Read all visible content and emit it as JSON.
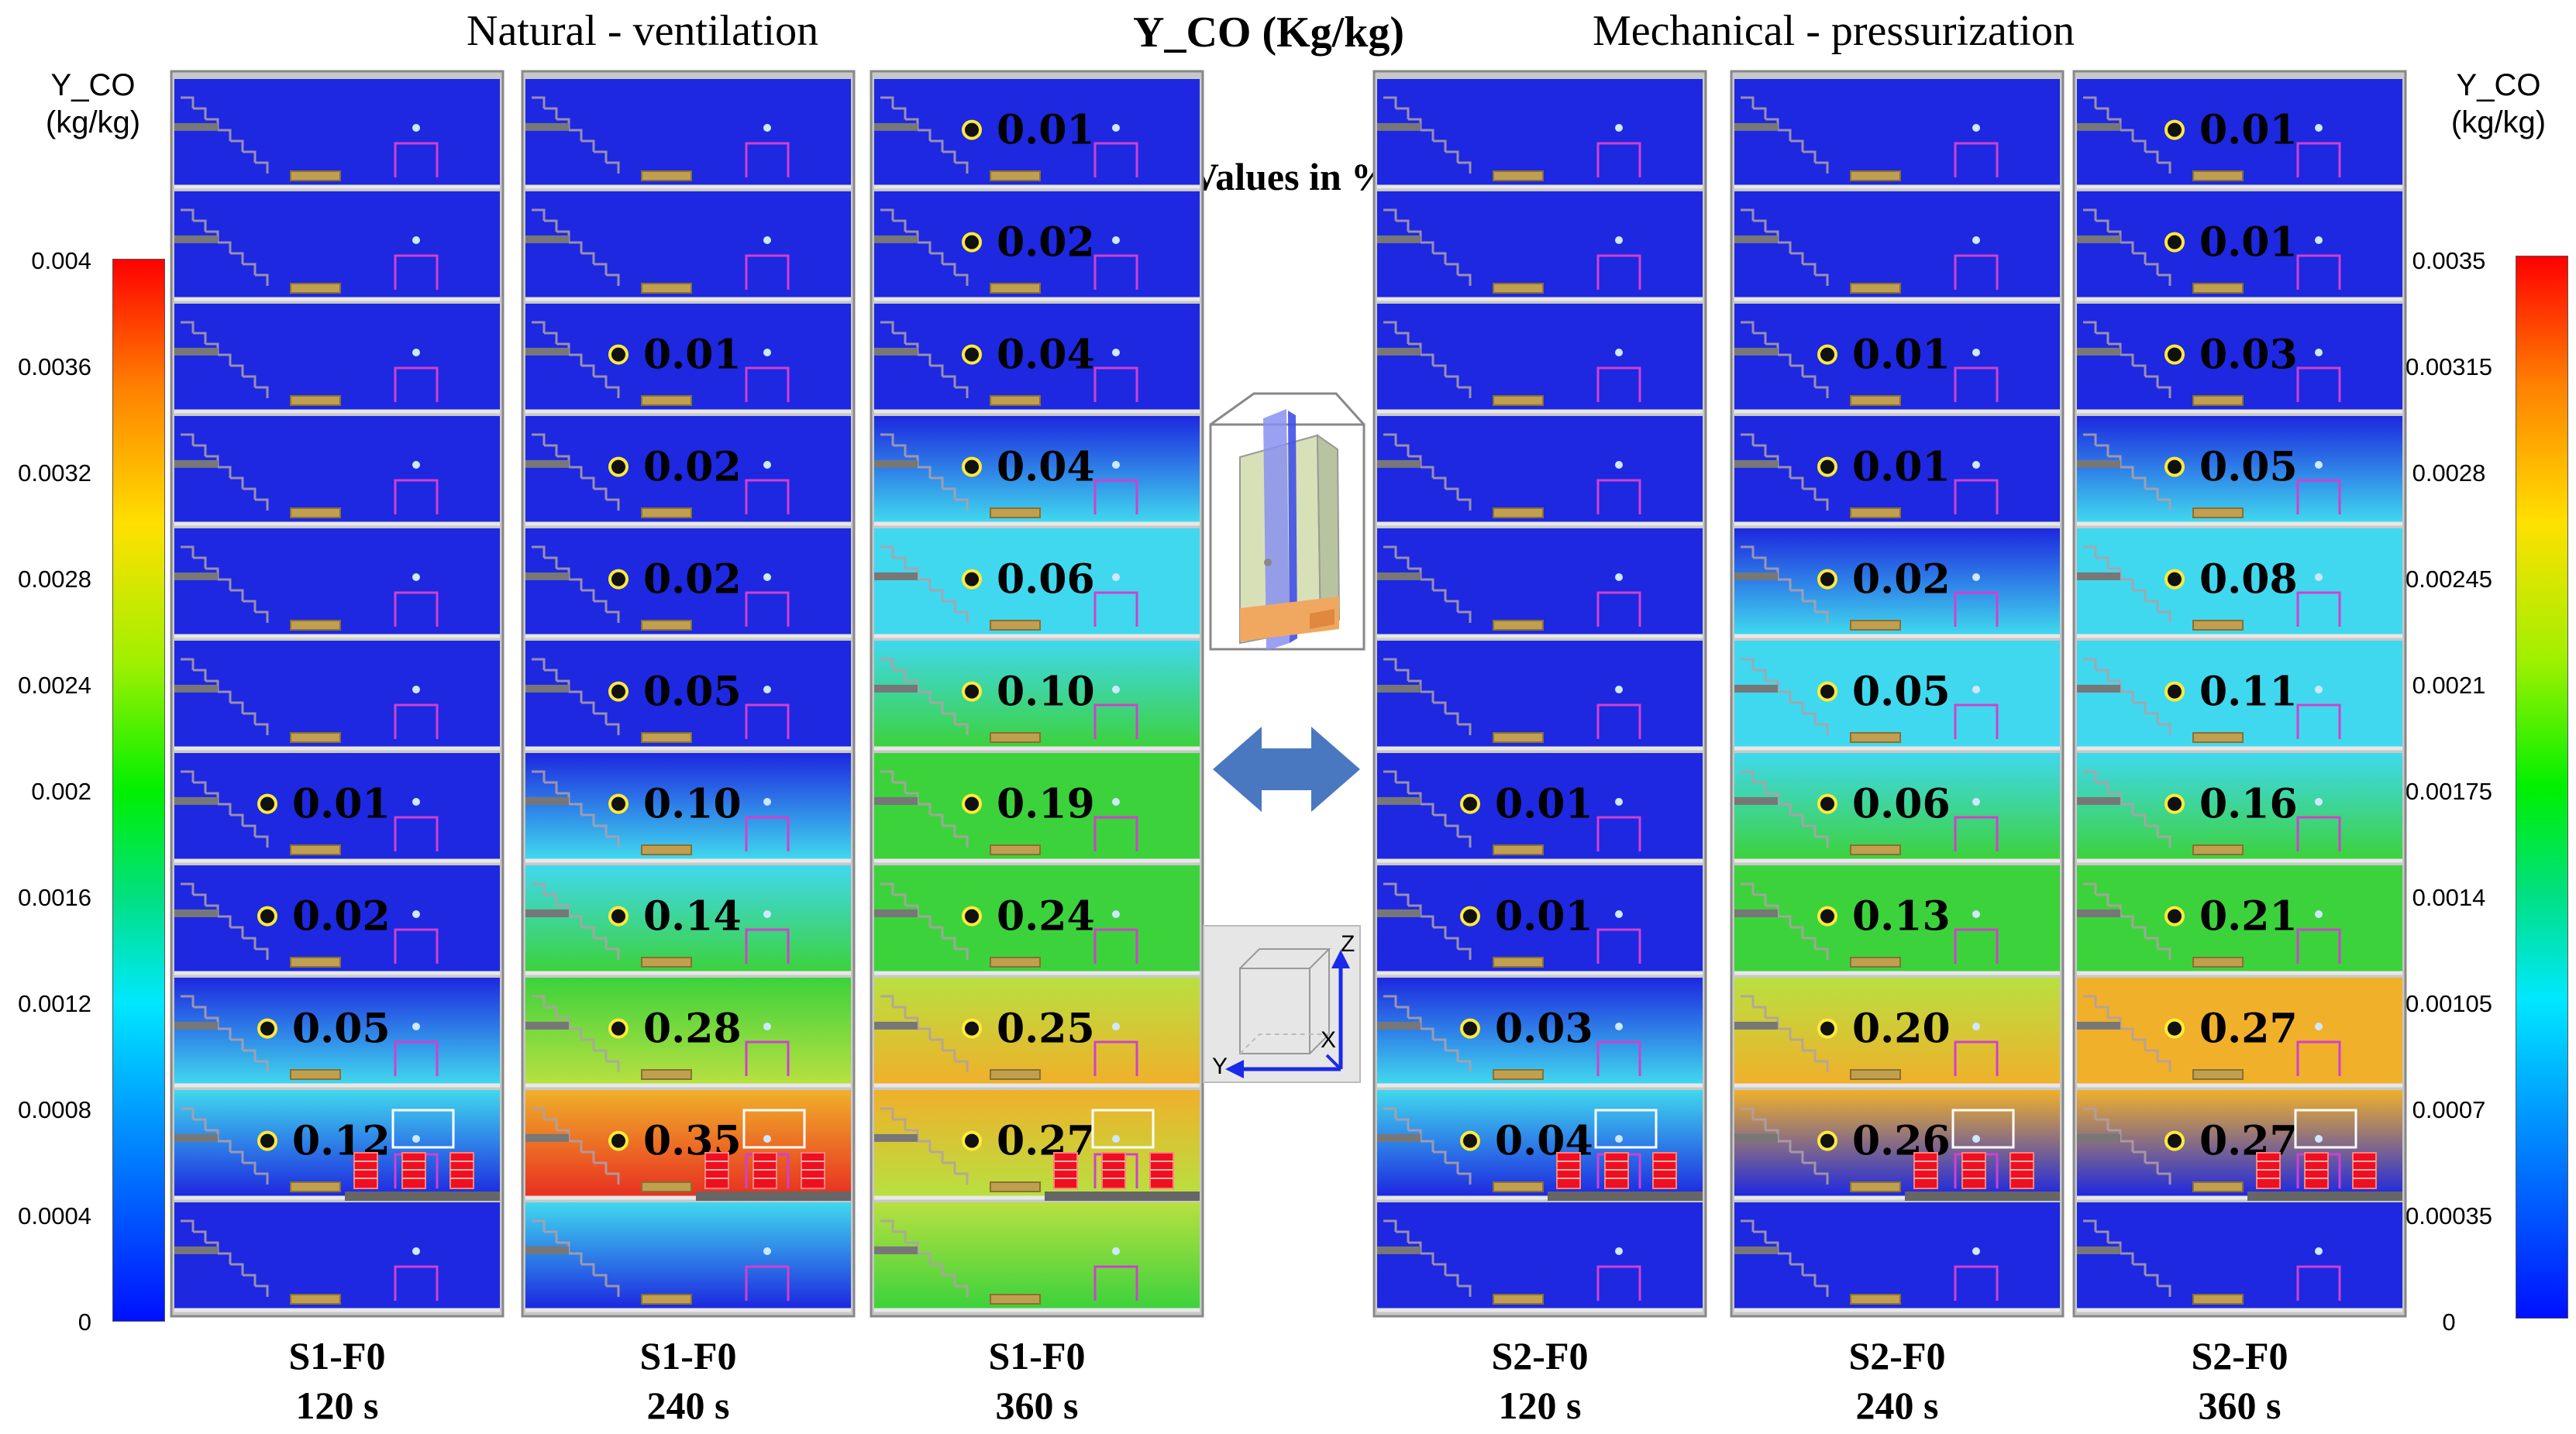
{
  "headers": {
    "left_title": "Natural - ventilation",
    "center_title": "Y_CO (Kg/kg)",
    "right_title": "Mechanical  - pressurization",
    "note": "Values in %"
  },
  "colors": {
    "deep_blue": "#1d28e0",
    "cyan": "#40d8ee",
    "green": "#3cd23c",
    "yellow_green": "#b8e040",
    "orange": "#f0b02a",
    "red": "#e83020",
    "arrow_blue": "#4a78c0"
  },
  "scalebar_left": {
    "title": "Y_CO (kg/kg)",
    "ticks": [
      "0.004",
      "0.0036",
      "0.0032",
      "0.0028",
      "0.0024",
      "0.002",
      "0.0016",
      "0.0012",
      "0.0008",
      "0.0004",
      "0"
    ],
    "range": [
      0,
      0.004
    ]
  },
  "scalebar_right": {
    "title": "Y_CO (kg/kg)",
    "ticks": [
      "0.0035",
      "0.00315",
      "0.0028",
      "0.00245",
      "0.0021",
      "0.00175",
      "0.0014",
      "0.00105",
      "0.0007",
      "0.00035",
      "0"
    ],
    "range": [
      0,
      0.0035
    ]
  },
  "axes_labels": {
    "z": "Z",
    "y": "Y",
    "x": "X"
  },
  "panels": [
    {
      "scenario": "S1-F0",
      "time": "120 s",
      "floors": [
        {
          "value": ""
        },
        {
          "value": ""
        },
        {
          "value": ""
        },
        {
          "value": ""
        },
        {
          "value": ""
        },
        {
          "value": ""
        },
        {
          "value": "0.01"
        },
        {
          "value": "0.02"
        },
        {
          "value": "0.05"
        },
        {
          "value": "0.12"
        },
        {
          "value": ""
        }
      ]
    },
    {
      "scenario": "S1-F0",
      "time": "240 s",
      "floors": [
        {
          "value": ""
        },
        {
          "value": ""
        },
        {
          "value": "0.01"
        },
        {
          "value": "0.02"
        },
        {
          "value": "0.02"
        },
        {
          "value": "0.05"
        },
        {
          "value": "0.10"
        },
        {
          "value": "0.14"
        },
        {
          "value": "0.28"
        },
        {
          "value": "0.35"
        },
        {
          "value": ""
        }
      ]
    },
    {
      "scenario": "S1-F0",
      "time": "360 s",
      "floors": [
        {
          "value": "0.01"
        },
        {
          "value": "0.02"
        },
        {
          "value": "0.04"
        },
        {
          "value": "0.04"
        },
        {
          "value": "0.06"
        },
        {
          "value": "0.10"
        },
        {
          "value": "0.19"
        },
        {
          "value": "0.24"
        },
        {
          "value": "0.25"
        },
        {
          "value": "0.27"
        },
        {
          "value": ""
        }
      ]
    },
    {
      "scenario": "S2-F0",
      "time": "120 s",
      "floors": [
        {
          "value": ""
        },
        {
          "value": ""
        },
        {
          "value": ""
        },
        {
          "value": ""
        },
        {
          "value": ""
        },
        {
          "value": ""
        },
        {
          "value": "0.01"
        },
        {
          "value": "0.01"
        },
        {
          "value": "0.03"
        },
        {
          "value": "0.04"
        },
        {
          "value": ""
        }
      ]
    },
    {
      "scenario": "S2-F0",
      "time": "240 s",
      "floors": [
        {
          "value": ""
        },
        {
          "value": ""
        },
        {
          "value": "0.01"
        },
        {
          "value": "0.01"
        },
        {
          "value": "0.02"
        },
        {
          "value": "0.05"
        },
        {
          "value": "0.06"
        },
        {
          "value": "0.13"
        },
        {
          "value": "0.20"
        },
        {
          "value": "0.26"
        },
        {
          "value": ""
        }
      ]
    },
    {
      "scenario": "S2-F0",
      "time": "360 s",
      "floors": [
        {
          "value": "0.01"
        },
        {
          "value": "0.01"
        },
        {
          "value": "0.03"
        },
        {
          "value": "0.05"
        },
        {
          "value": "0.08"
        },
        {
          "value": "0.11"
        },
        {
          "value": "0.16"
        },
        {
          "value": "0.21"
        },
        {
          "value": "0.27"
        },
        {
          "value": "0.27"
        },
        {
          "value": ""
        }
      ]
    }
  ]
}
